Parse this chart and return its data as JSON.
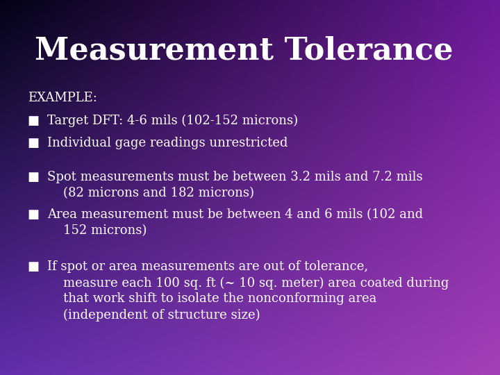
{
  "title": "Measurement Tolerance",
  "title_fontsize": 32,
  "title_color": "#ffffff",
  "title_fontfamily": "serif",
  "example_label": "EXAMPLE:",
  "example_fontsize": 13,
  "bullet_char": "■",
  "text_color": "#ffffff",
  "body_fontsize": 13,
  "body_fontfamily": "serif",
  "bullets": [
    "Target DFT: 4-6 mils (102-152 microns)",
    "Individual gage readings unrestricted",
    "Spot measurements must be between 3.2 mils and 7.2 mils\n    (82 microns and 182 microns)",
    "Area measurement must be between 4 and 6 mils (102 and\n    152 microns)",
    "If spot or area measurements are out of tolerance,\n    measure each 100 sq. ft (~ 10 sq. meter) area coated during\n    that work shift to isolate the nonconforming area\n    (independent of structure size)"
  ],
  "grad_tl": [
    0.01,
    0.01,
    0.08
  ],
  "grad_tr": [
    0.42,
    0.1,
    0.6
  ],
  "grad_bl": [
    0.38,
    0.18,
    0.68
  ],
  "grad_br": [
    0.65,
    0.25,
    0.72
  ]
}
